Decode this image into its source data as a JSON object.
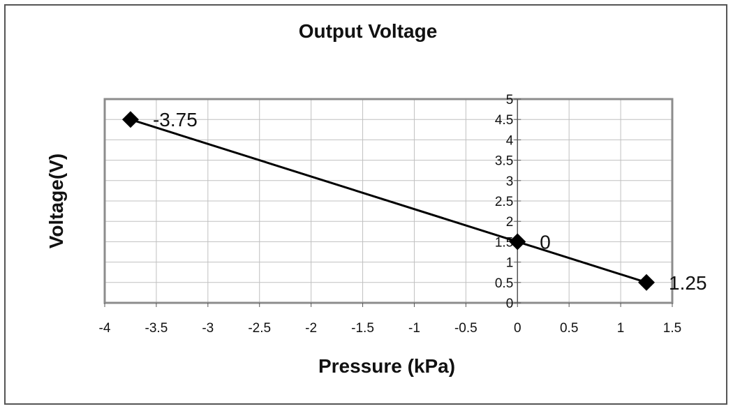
{
  "chart_data": {
    "type": "scatter",
    "title": "Output Voltage",
    "xlabel": "Pressure (kPa)",
    "ylabel": "Voltage(V)",
    "xlim": [
      -4,
      1.5
    ],
    "ylim": [
      0,
      5
    ],
    "x_ticks": [
      "-4",
      "-3.5",
      "-3",
      "-2.5",
      "-2",
      "-1.5",
      "-1",
      "-0.5",
      "0",
      "0.5",
      "1",
      "1.5"
    ],
    "y_ticks": [
      "0",
      "0.5",
      "1",
      "1.5",
      "2",
      "2.5",
      "3",
      "3.5",
      "4",
      "4.5",
      "5"
    ],
    "grid": true,
    "legend": "none",
    "series": [
      {
        "x": [
          -3.75,
          0,
          1.25
        ],
        "y": [
          4.5,
          1.5,
          0.5
        ],
        "data_labels": [
          "-3.75",
          "0",
          "1.25"
        ],
        "marker": "diamond",
        "line": true,
        "color": "#000000"
      }
    ],
    "colors": {
      "plot_border": "#8c8c8c",
      "grid": "#c0c0c0",
      "line": "#000000"
    }
  }
}
